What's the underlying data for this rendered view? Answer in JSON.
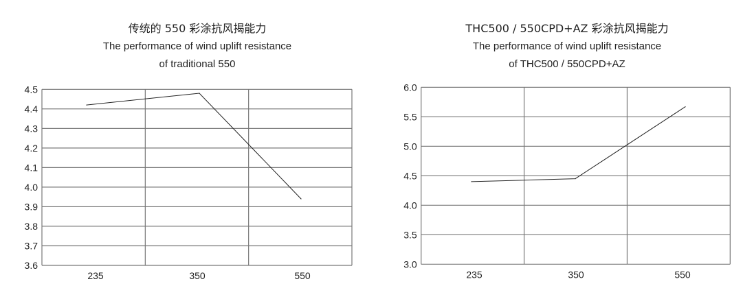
{
  "chart_data": [
    {
      "type": "line",
      "title_cn": "传统的 550 彩涂抗风揭能力",
      "title_en_1": "The performance of wind uplift resistance",
      "title_en_2": "of traditional 550",
      "categories": [
        "235",
        "350",
        "550"
      ],
      "values": [
        4.42,
        4.48,
        3.94
      ],
      "ylim": [
        3.6,
        4.5
      ],
      "yticks": [
        "4.5",
        "4.4",
        "4.3",
        "4.2",
        "4.1",
        "4.0",
        "3.9",
        "3.8",
        "3.7",
        "3.6"
      ],
      "grid": true,
      "line_color": "#222222",
      "grid_color": "#777777"
    },
    {
      "type": "line",
      "title_cn": "THC500 / 550CPD+AZ 彩涂抗风揭能力",
      "title_en_1": "The performance of wind uplift resistance",
      "title_en_2": "of THC500 / 550CPD+AZ",
      "categories": [
        "235",
        "350",
        "550"
      ],
      "values": [
        4.4,
        4.45,
        5.67
      ],
      "ylim": [
        3.0,
        6.0
      ],
      "yticks": [
        "6.0",
        "5.5",
        "5.0",
        "4.5",
        "4.0",
        "3.5",
        "3.0"
      ],
      "grid": true,
      "line_color": "#222222",
      "grid_color": "#777777"
    }
  ]
}
